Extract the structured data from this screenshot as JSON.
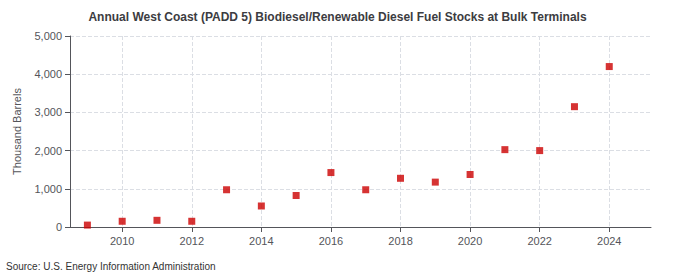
{
  "chart_data": {
    "type": "scatter",
    "title": "Annual West Coast (PADD 5) Biodiesel/Renewable Diesel Fuel Stocks at Bulk Terminals",
    "ylabel": "Thousand Barrels",
    "annotations": [
      "Source: U.S. Energy Information Administration"
    ],
    "x": [
      2009,
      2010,
      2011,
      2012,
      2013,
      2014,
      2015,
      2016,
      2017,
      2018,
      2019,
      2020,
      2021,
      2022,
      2023,
      2024
    ],
    "values": [
      50,
      150,
      175,
      150,
      975,
      550,
      825,
      1425,
      975,
      1275,
      1175,
      1375,
      2025,
      2000,
      3150,
      4200
    ],
    "color": "#cc0000",
    "marker": "square",
    "xlim": [
      2008.5,
      2025.2
    ],
    "xticks": [
      2010,
      2012,
      2014,
      2016,
      2018,
      2020,
      2022,
      2024
    ],
    "ylim": [
      0,
      5000
    ],
    "yticks": [
      0,
      {
        "value": 1000,
        "label": "1,000"
      },
      {
        "value": 2000,
        "label": "2,000"
      },
      {
        "value": 3000,
        "label": "3,000"
      },
      {
        "value": 4000,
        "label": "4,000"
      },
      {
        "value": 5000,
        "label": "5,000"
      }
    ],
    "grid": true
  }
}
